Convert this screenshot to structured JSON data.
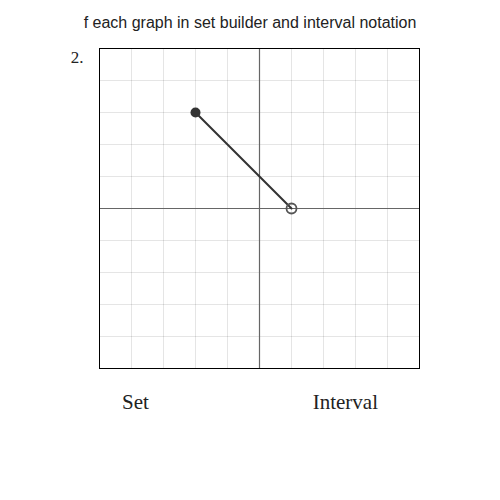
{
  "chart_data": {
    "type": "line",
    "title": "f each graph in set builder and interval notation",
    "annotations": [
      "2.",
      "Set",
      "Interval"
    ],
    "x": [
      -2,
      1
    ],
    "series": [
      {
        "type": "line",
        "color": "#333333",
        "values": [
          3,
          0
        ]
      },
      {
        "type": "scatter",
        "marker": "filled",
        "color": "#333333",
        "values": [
          3,
          null
        ]
      },
      {
        "type": "scatter",
        "marker": "open",
        "color": "#555555",
        "values": [
          null,
          0
        ]
      }
    ],
    "xlim": [
      -5,
      5
    ],
    "ylim": [
      -5,
      5
    ],
    "xticks": [
      -5,
      -4,
      -3,
      -2,
      -1,
      0,
      1,
      2,
      3,
      4,
      5
    ],
    "yticks": [
      -5,
      -4,
      -3,
      -2,
      -1,
      0,
      1,
      2,
      3,
      4,
      5
    ],
    "grid": true,
    "tick_labels": false
  }
}
